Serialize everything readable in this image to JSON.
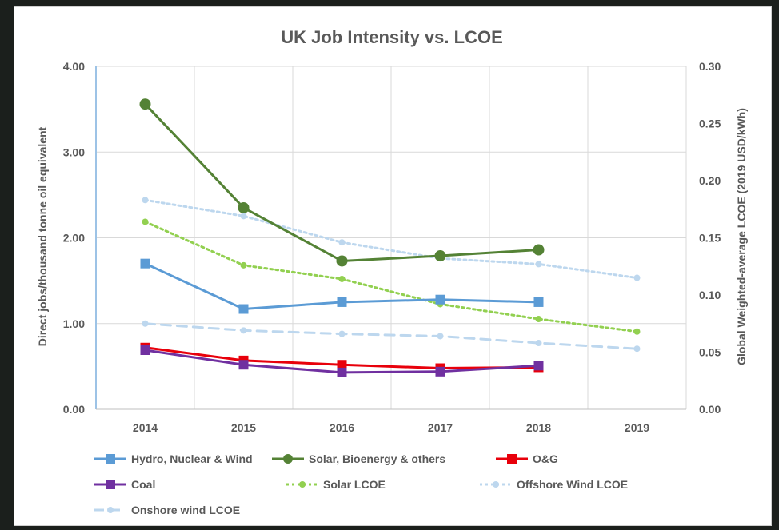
{
  "chart_data": {
    "type": "line",
    "title": "UK Job Intensity vs. LCOE",
    "ylabel": "Direct jobs/thousand tonne oil equivalent",
    "y2label": "Global Weighted-average LCOE (2019 USD/kWh)",
    "categories": [
      "2014",
      "2015",
      "2016",
      "2017",
      "2018",
      "2019"
    ],
    "ylim": [
      0,
      4
    ],
    "y2lim": [
      0,
      0.3
    ],
    "y_ticks": [
      "0.00",
      "1.00",
      "2.00",
      "3.00",
      "4.00"
    ],
    "y2_ticks": [
      "0.00",
      "0.05",
      "0.10",
      "0.15",
      "0.20",
      "0.25",
      "0.30"
    ],
    "grid": true,
    "legend_position": "bottom",
    "series": [
      {
        "name": "Hydro, Nuclear & Wind",
        "axis": "left",
        "color": "#5b9bd5",
        "style": "solid",
        "marker": "square",
        "values": [
          1.7,
          1.17,
          1.25,
          1.28,
          1.25,
          null
        ]
      },
      {
        "name": "Solar, Bioenergy & others",
        "axis": "left",
        "color": "#548235",
        "style": "solid",
        "marker": "circle",
        "values": [
          3.56,
          2.35,
          1.73,
          1.79,
          1.86,
          null
        ]
      },
      {
        "name": "O&G",
        "axis": "left",
        "color": "#e8000b",
        "style": "solid",
        "marker": "square",
        "values": [
          0.72,
          0.57,
          0.52,
          0.48,
          0.49,
          null
        ]
      },
      {
        "name": "Coal",
        "axis": "left",
        "color": "#7030a0",
        "style": "solid",
        "marker": "square",
        "values": [
          0.69,
          0.52,
          0.43,
          0.44,
          0.51,
          null
        ]
      },
      {
        "name": "Solar LCOE",
        "axis": "right",
        "color": "#92d050",
        "style": "dotted",
        "marker": "circle",
        "values": [
          0.164,
          0.126,
          0.114,
          0.092,
          0.079,
          0.068
        ]
      },
      {
        "name": "Offshore Wind LCOE",
        "axis": "right",
        "color": "#bdd7ee",
        "style": "dotted",
        "marker": "circle",
        "values": [
          0.183,
          0.169,
          0.146,
          0.132,
          0.127,
          0.115
        ]
      },
      {
        "name": "Onshore wind LCOE",
        "axis": "right",
        "color": "#bdd7ee",
        "style": "dashed",
        "marker": "circle",
        "values": [
          0.075,
          0.069,
          0.066,
          0.064,
          0.058,
          0.053
        ]
      }
    ]
  }
}
